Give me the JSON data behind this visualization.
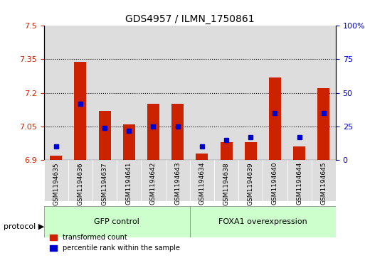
{
  "title": "GDS4957 / ILMN_1750861",
  "samples": [
    "GSM1194635",
    "GSM1194636",
    "GSM1194637",
    "GSM1194641",
    "GSM1194642",
    "GSM1194643",
    "GSM1194634",
    "GSM1194638",
    "GSM1194639",
    "GSM1194640",
    "GSM1194644",
    "GSM1194645"
  ],
  "transformed_count": [
    6.92,
    7.34,
    7.12,
    7.06,
    7.15,
    7.15,
    6.93,
    6.98,
    6.98,
    7.27,
    6.96,
    7.22
  ],
  "percentile_rank": [
    10,
    42,
    24,
    22,
    25,
    25,
    10,
    15,
    17,
    35,
    17,
    35
  ],
  "baseline": 6.9,
  "ylim_left": [
    6.9,
    7.5
  ],
  "ylim_right": [
    0,
    100
  ],
  "yticks_left": [
    6.9,
    7.05,
    7.2,
    7.35,
    7.5
  ],
  "yticks_right": [
    0,
    25,
    50,
    75,
    100
  ],
  "ytick_labels_left": [
    "6.9",
    "7.05",
    "7.2",
    "7.35",
    "7.5"
  ],
  "ytick_labels_right": [
    "0",
    "25",
    "50",
    "75",
    "100%"
  ],
  "hlines": [
    7.05,
    7.2,
    7.35
  ],
  "group1_label": "GFP control",
  "group2_label": "FOXA1 overexpression",
  "group1_count": 6,
  "group2_count": 6,
  "bar_color": "#cc2200",
  "dot_color": "#0000cc",
  "group_bg_color": "#ccffcc",
  "cell_bg_color": "#dddddd",
  "legend_red_label": "transformed count",
  "legend_blue_label": "percentile rank within the sample",
  "bar_width": 0.5,
  "protocol_label": "protocol"
}
